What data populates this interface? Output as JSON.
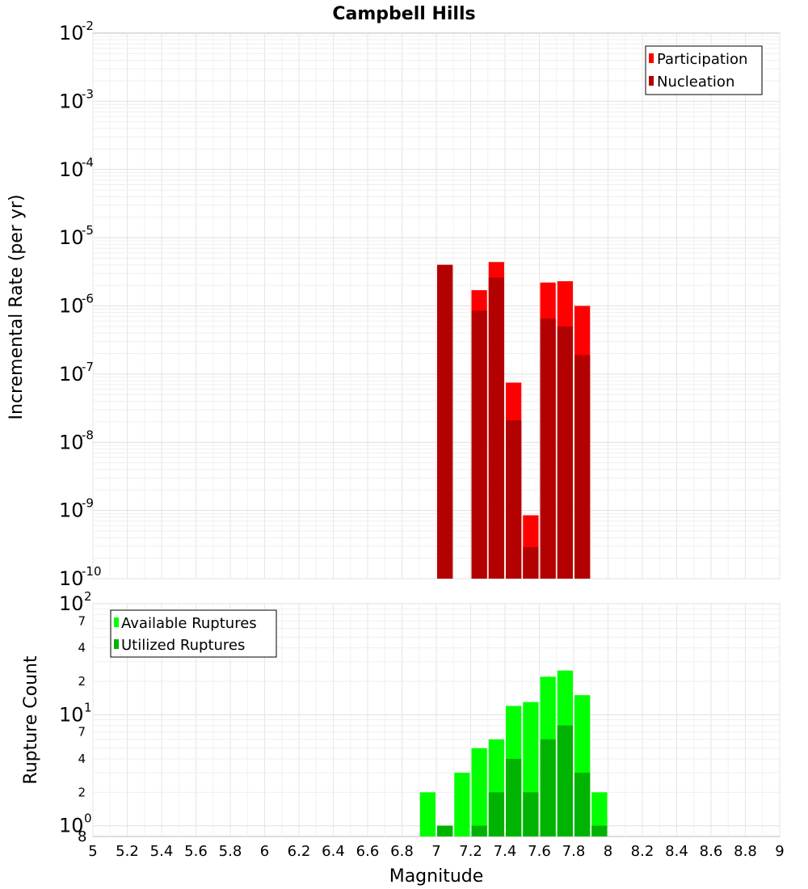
{
  "chart_data": [
    {
      "type": "bar",
      "title": "Campbell Hills",
      "ylabel": "Incremental Rate (per yr)",
      "xlabel": "",
      "yscale": "log",
      "ylim": [
        1e-10,
        0.01
      ],
      "xlim": [
        5,
        9
      ],
      "y_tick_exponents": [
        "-2",
        "-3",
        "-4",
        "-5",
        "-6",
        "-7",
        "-8",
        "-9",
        "-10"
      ],
      "legend_position": "top-right",
      "bar_width": 0.1,
      "series": [
        {
          "name": "Participation",
          "color": "#ff0000",
          "x": [
            7.05,
            7.25,
            7.35,
            7.45,
            7.55,
            7.65,
            7.75,
            7.85
          ],
          "values": [
            4e-06,
            1.7e-06,
            4.4e-06,
            7.5e-08,
            8.5e-10,
            2.2e-06,
            2.3e-06,
            1e-06
          ]
        },
        {
          "name": "Nucleation",
          "color": "#b30000",
          "x": [
            7.05,
            7.25,
            7.35,
            7.45,
            7.55,
            7.65,
            7.75,
            7.85
          ],
          "values": [
            4e-06,
            8.5e-07,
            2.6e-06,
            2.1e-08,
            2.9e-10,
            6.5e-07,
            5e-07,
            1.9e-07
          ]
        }
      ]
    },
    {
      "type": "bar",
      "ylabel": "Rupture Count",
      "xlabel": "Magnitude",
      "yscale": "log",
      "ylim": [
        0.8,
        100
      ],
      "xlim": [
        5,
        9
      ],
      "legend_position": "top-left",
      "bar_width": 0.1,
      "x_ticks": [
        "5",
        "5.2",
        "5.4",
        "5.6",
        "5.8",
        "6",
        "6.2",
        "6.4",
        "6.6",
        "6.8",
        "7",
        "7.2",
        "7.4",
        "7.6",
        "7.8",
        "8",
        "8.2",
        "8.4",
        "8.6",
        "8.8",
        "9"
      ],
      "y_major_ticks": [
        {
          "base": "10",
          "exp": "2",
          "value": 100
        },
        {
          "base": "10",
          "exp": "1",
          "value": 10
        },
        {
          "base": "10",
          "exp": "0",
          "value": 1
        }
      ],
      "y_minor_ticks": [
        {
          "label": "7",
          "value": 70
        },
        {
          "label": "4",
          "value": 40
        },
        {
          "label": "2",
          "value": 20
        },
        {
          "label": "7",
          "value": 7
        },
        {
          "label": "4",
          "value": 4
        },
        {
          "label": "2",
          "value": 2
        }
      ],
      "y_bottom_label": "8",
      "series": [
        {
          "name": "Available Ruptures",
          "color": "#00ff00",
          "x": [
            6.95,
            7.05,
            7.15,
            7.25,
            7.35,
            7.45,
            7.55,
            7.65,
            7.75,
            7.85,
            7.95
          ],
          "values": [
            2,
            1,
            3,
            5,
            6,
            12,
            13,
            22,
            25,
            15,
            2
          ]
        },
        {
          "name": "Utilized Ruptures",
          "color": "#00b300",
          "x": [
            6.95,
            7.05,
            7.15,
            7.25,
            7.35,
            7.45,
            7.55,
            7.65,
            7.75,
            7.85,
            7.95
          ],
          "values": [
            0,
            1,
            0,
            1,
            2,
            4,
            2,
            6,
            8,
            3,
            1
          ]
        }
      ]
    }
  ]
}
